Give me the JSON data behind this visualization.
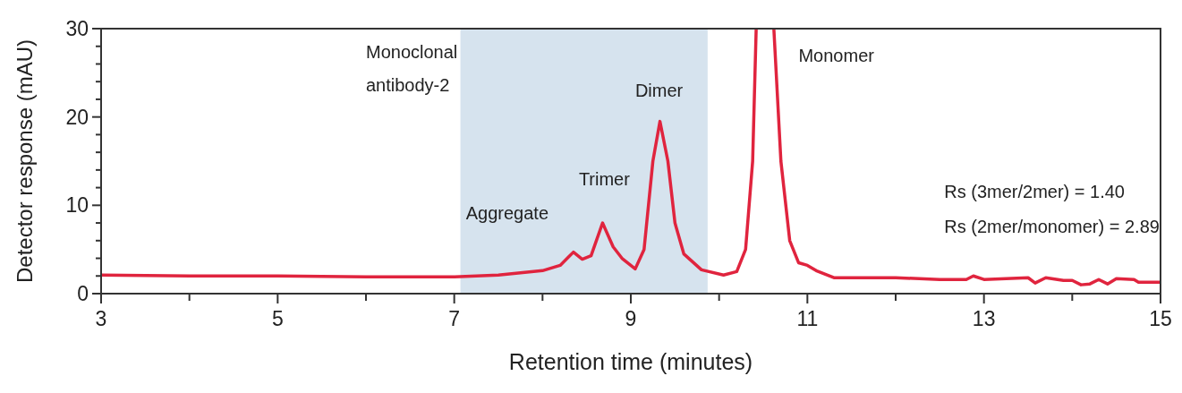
{
  "chart_data": {
    "type": "line",
    "xlabel": "Retention time (minutes)",
    "ylabel": "Detector response (mAU)",
    "xlim": [
      3,
      15
    ],
    "ylim": [
      0,
      30
    ],
    "xticks": [
      3,
      {
        "value": 4,
        "label": null
      },
      5,
      {
        "value": 6,
        "label": null
      },
      7,
      {
        "value": 8,
        "label": null
      },
      9,
      {
        "value": 10,
        "label": null
      },
      11,
      {
        "value": 12,
        "label": null
      },
      13,
      {
        "value": 14,
        "label": null
      },
      15
    ],
    "yticks": [
      0,
      {
        "value": 2,
        "label": null
      },
      {
        "value": 4,
        "label": null
      },
      {
        "value": 6,
        "label": null
      },
      {
        "value": 8,
        "label": null
      },
      10,
      {
        "value": 12,
        "label": null
      },
      {
        "value": 14,
        "label": null
      },
      {
        "value": 16,
        "label": null
      },
      {
        "value": 18,
        "label": null
      },
      20,
      {
        "value": 22,
        "label": null
      },
      {
        "value": 24,
        "label": null
      },
      {
        "value": 26,
        "label": null
      },
      {
        "value": 28,
        "label": null
      },
      30
    ],
    "grid": false,
    "bands": [
      {
        "axis": "x",
        "from": 7.07,
        "to": 9.87,
        "color": "#d6e3ee"
      }
    ],
    "series": [
      {
        "color": "#e0243e",
        "x": [
          3,
          4,
          5,
          6,
          7,
          7.5,
          8,
          8.2,
          8.3,
          8.35,
          8.45,
          8.55,
          8.68,
          8.8,
          8.9,
          9.05,
          9.15,
          9.25,
          9.33,
          9.42,
          9.5,
          9.6,
          9.8,
          10.05,
          10.2,
          10.3,
          10.38,
          10.42,
          10.5,
          10.62,
          10.7,
          10.8,
          10.9,
          11,
          11.1,
          11.3,
          12,
          12.5,
          12.8,
          12.88,
          13,
          13.5,
          13.58,
          13.7,
          13.9,
          14,
          14.1,
          14.2,
          14.3,
          14.4,
          14.5,
          14.7,
          14.75,
          15
        ],
        "values": [
          2.1,
          2.0,
          2,
          1.9,
          1.9,
          2.1,
          2.6,
          3.2,
          4.2,
          4.7,
          3.9,
          4.3,
          8,
          5.3,
          4,
          2.8,
          5,
          15,
          19.5,
          15,
          8,
          4.5,
          2.7,
          2.1,
          2.5,
          5,
          15,
          30,
          null,
          30,
          15,
          6,
          3.5,
          3.2,
          2.6,
          1.8,
          1.8,
          1.6,
          1.6,
          2,
          1.6,
          1.8,
          1.2,
          1.8,
          1.5,
          1.5,
          1,
          1.1,
          1.6,
          1.1,
          1.7,
          1.6,
          1.3,
          1.3
        ]
      }
    ],
    "annotations": [
      "Monoclonal antibody-2",
      "Aggregate",
      "Trimer",
      "Dimer",
      "Monomer",
      "Rs (3mer/2mer) = 1.40",
      "Rs (2mer/monomer) = 2.89"
    ]
  }
}
